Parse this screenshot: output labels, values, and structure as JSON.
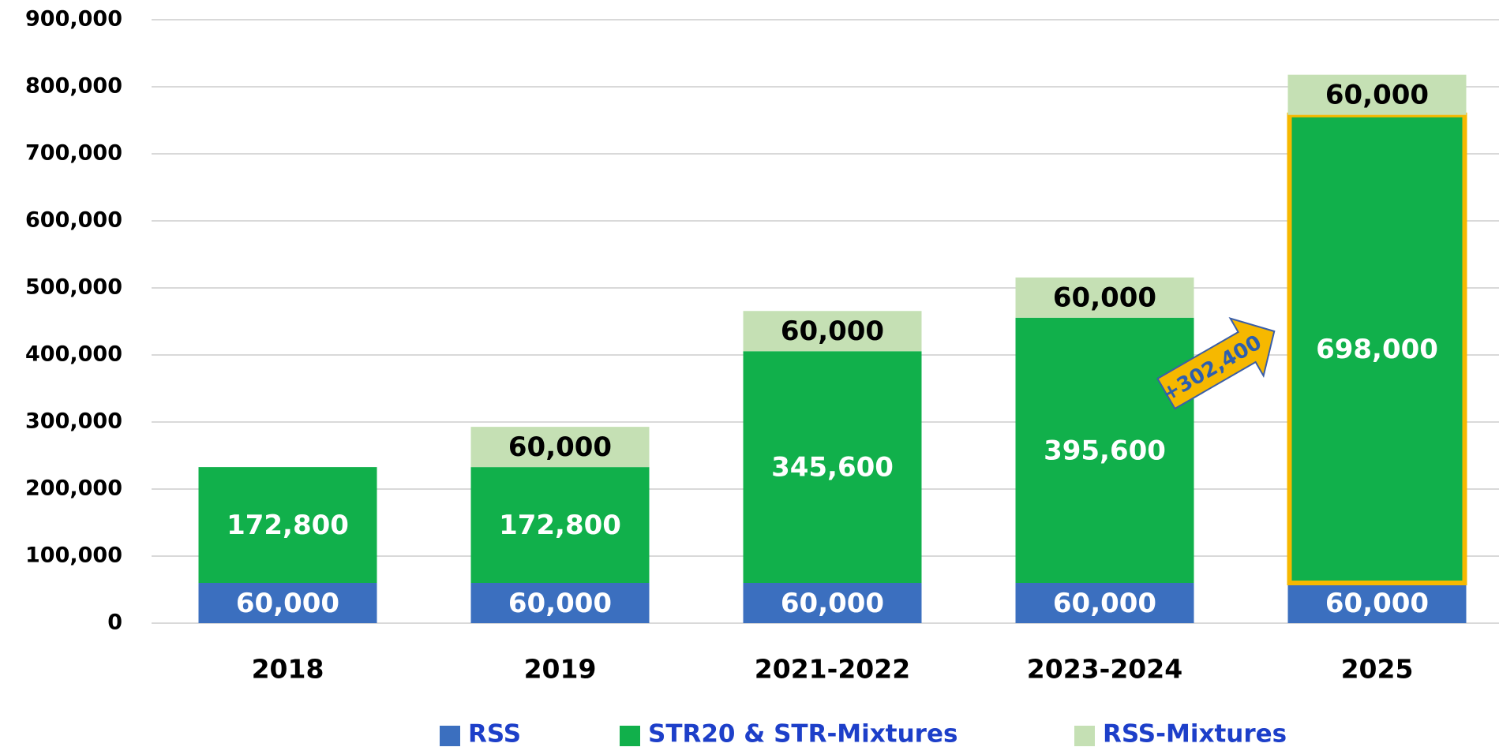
{
  "chart_data": {
    "type": "stacked_bar",
    "categories": [
      "2018",
      "2019",
      "2021-2022",
      "2023-2024",
      "2025"
    ],
    "series": [
      {
        "name": "RSS",
        "color": "#3b6fbf",
        "label_color": "#ffffff",
        "values": [
          60000,
          60000,
          60000,
          60000,
          60000
        ],
        "value_labels": [
          "60,000",
          "60,000",
          "60,000",
          "60,000",
          "60,000"
        ]
      },
      {
        "name": "STR20 & STR-Mixtures",
        "color": "#11b04b",
        "label_color": "#ffffff",
        "values": [
          172800,
          172800,
          345600,
          395600,
          698000
        ],
        "value_labels": [
          "172,800",
          "172,800",
          "345,600",
          "395,600",
          "698,000"
        ]
      },
      {
        "name": "RSS-Mixtures",
        "color": "#c5e0b4",
        "label_color": "#000000",
        "values": [
          null,
          60000,
          60000,
          60000,
          60000
        ],
        "value_labels": [
          null,
          "60,000",
          "60,000",
          "60,000",
          "60,000"
        ]
      }
    ],
    "annotation": "+302,400",
    "ylim": [
      0,
      900000
    ],
    "yticks": [
      0,
      {
        "value": 100000,
        "label": "100,000"
      },
      {
        "value": 200000,
        "label": "200,000"
      },
      {
        "value": 300000,
        "label": "300,000"
      },
      {
        "value": 400000,
        "label": "400,000"
      },
      {
        "value": 500000,
        "label": "500,000"
      },
      {
        "value": 600000,
        "label": "600,000"
      },
      {
        "value": 700000,
        "label": "700,000"
      },
      {
        "value": 800000,
        "label": "800,000"
      },
      {
        "value": 900000,
        "label": "900,000"
      }
    ],
    "grid": true,
    "legend": "bottom"
  }
}
